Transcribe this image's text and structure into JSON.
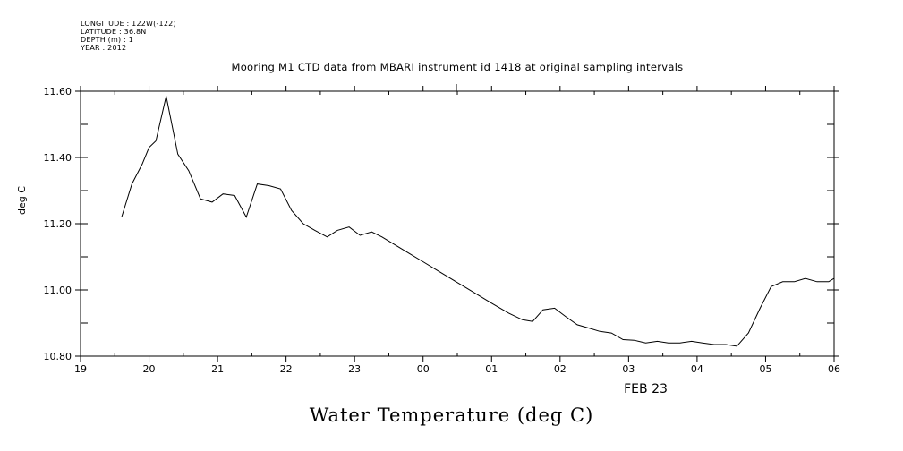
{
  "header": {
    "longitude": "LONGITUDE : 122W(-122)",
    "latitude": "LATITUDE : 36.8N",
    "depth": "DEPTH (m) : 1",
    "year": "YEAR : 2012"
  },
  "chart_data": {
    "type": "line",
    "title": "Mooring M1 CTD data from MBARI instrument id 1418 at original sampling intervals",
    "subtitle": "Water Temperature (deg C)",
    "ylabel": "deg C",
    "xlabel": "FEB 23",
    "xlim": [
      19,
      30
    ],
    "ylim": [
      10.8,
      11.6
    ],
    "x_tick_labels": [
      "19",
      "20",
      "21",
      "22",
      "23",
      "00",
      "01",
      "02",
      "03",
      "04",
      "05",
      "06"
    ],
    "y_tick_values": [
      10.8,
      11.0,
      11.2,
      11.4,
      11.6
    ],
    "y_tick_labels": [
      "10.80",
      "11.00",
      "11.20",
      "11.40",
      "11.60"
    ],
    "grid": false,
    "series": [
      {
        "x": [
          19.6,
          19.75,
          19.9,
          20.0,
          20.1,
          20.25,
          20.42,
          20.58,
          20.75,
          20.92,
          21.08,
          21.25,
          21.42,
          21.58,
          21.75,
          21.92,
          22.08,
          22.25,
          22.42,
          22.6,
          22.75,
          22.92,
          23.08,
          23.25,
          23.4,
          23.6,
          23.8,
          24.0,
          24.2,
          24.4,
          24.6,
          24.8,
          25.0,
          25.25,
          25.45,
          25.6,
          25.75,
          25.92,
          26.08,
          26.25,
          26.42,
          26.58,
          26.75,
          26.92,
          27.08,
          27.25,
          27.42,
          27.58,
          27.75,
          27.92,
          28.08,
          28.25,
          28.42,
          28.58,
          28.75,
          28.92,
          29.08,
          29.25,
          29.42,
          29.58,
          29.75,
          29.92,
          30.0
        ],
        "values": [
          11.22,
          11.32,
          11.38,
          11.43,
          11.45,
          11.585,
          11.41,
          11.36,
          11.275,
          11.265,
          11.29,
          11.285,
          11.22,
          11.32,
          11.315,
          11.305,
          11.24,
          11.2,
          11.18,
          11.16,
          11.18,
          11.19,
          11.165,
          11.175,
          11.16,
          11.135,
          11.11,
          11.085,
          11.06,
          11.035,
          11.01,
          10.985,
          10.96,
          10.93,
          10.91,
          10.905,
          10.94,
          10.945,
          10.92,
          10.895,
          10.885,
          10.875,
          10.87,
          10.85,
          10.848,
          10.84,
          10.845,
          10.84,
          10.84,
          10.845,
          10.84,
          10.835,
          10.835,
          10.83,
          10.87,
          10.945,
          11.01,
          11.025,
          11.025,
          11.035,
          11.025,
          11.025,
          11.035
        ]
      }
    ]
  }
}
